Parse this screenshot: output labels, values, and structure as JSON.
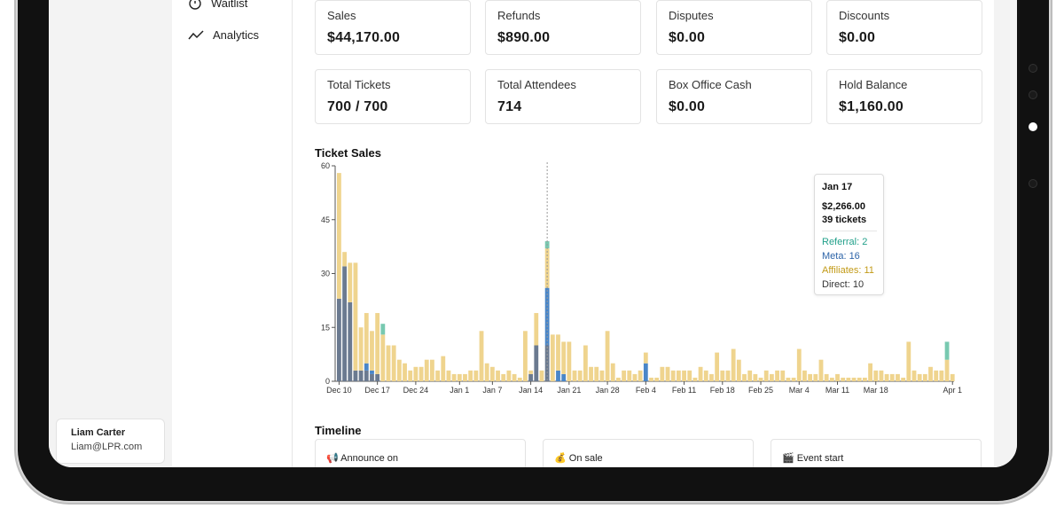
{
  "nav": {
    "items": [
      {
        "label": "Waitlist",
        "icon": "stopwatch-icon"
      },
      {
        "label": "Analytics",
        "icon": "trend-line-icon"
      }
    ]
  },
  "user": {
    "name": "Liam Carter",
    "email": "Liam@LPR.com"
  },
  "stats": [
    {
      "label": "Sales",
      "value": "$44,170.00"
    },
    {
      "label": "Refunds",
      "value": "$890.00"
    },
    {
      "label": "Disputes",
      "value": "$0.00"
    },
    {
      "label": "Discounts",
      "value": "$0.00"
    },
    {
      "label": "Total Tickets",
      "value": "700 / 700"
    },
    {
      "label": "Total Attendees",
      "value": "714"
    },
    {
      "label": "Box Office Cash",
      "value": "$0.00"
    },
    {
      "label": "Hold Balance",
      "value": "$1,160.00"
    }
  ],
  "ticket_sales": {
    "title": "Ticket Sales"
  },
  "tooltip": {
    "date": "Jan 17",
    "amount": "$2,266.00",
    "tickets": "39 tickets",
    "referral": "Referral: 2",
    "meta": "Meta: 16",
    "affiliates": "Affiliates: 11",
    "direct": "Direct: 10"
  },
  "timeline": {
    "title": "Timeline",
    "items": [
      {
        "label": "Announce on",
        "icon": "megaphone-icon"
      },
      {
        "label": "On sale",
        "icon": "money-bag-icon"
      },
      {
        "label": "Event start",
        "icon": "clapper-icon"
      }
    ]
  },
  "colors": {
    "direct": "#6b7a90",
    "meta": "#4a86c8",
    "affiliates": "#efd48e",
    "referral": "#78c9b0",
    "referral_text": "#22a08a",
    "meta_text": "#2d64a8",
    "affiliates_text": "#c29a17"
  },
  "chart_data": {
    "type": "bar",
    "stacked": true,
    "ylim": [
      0,
      60
    ],
    "yticks": [
      0,
      15,
      30,
      45,
      60
    ],
    "xticks": [
      "Dec 10",
      "Dec 17",
      "Dec 24",
      "Jan 1",
      "Jan 7",
      "Jan 14",
      "Jan 21",
      "Jan 28",
      "Feb 4",
      "Feb 11",
      "Feb 18",
      "Feb 25",
      "Mar 4",
      "Mar 11",
      "Mar 18",
      "Apr 1"
    ],
    "series_names": [
      "Direct",
      "Meta",
      "Affiliates",
      "Referral"
    ],
    "x": [
      "Dec 10",
      "Dec 11",
      "Dec 12",
      "Dec 13",
      "Dec 14",
      "Dec 15",
      "Dec 16",
      "Dec 17",
      "Dec 18",
      "Dec 19",
      "Dec 20",
      "Dec 21",
      "Dec 22",
      "Dec 23",
      "Dec 24",
      "Dec 25",
      "Dec 26",
      "Dec 27",
      "Dec 28",
      "Dec 29",
      "Dec 30",
      "Dec 31",
      "Jan 1",
      "Jan 2",
      "Jan 3",
      "Jan 4",
      "Jan 5",
      "Jan 6",
      "Jan 7",
      "Jan 8",
      "Jan 9",
      "Jan 10",
      "Jan 11",
      "Jan 12",
      "Jan 13",
      "Jan 14",
      "Jan 15",
      "Jan 16",
      "Jan 17",
      "Jan 18",
      "Jan 19",
      "Jan 20",
      "Jan 21",
      "Jan 22",
      "Jan 23",
      "Jan 24",
      "Jan 25",
      "Jan 26",
      "Jan 27",
      "Jan 28",
      "Jan 29",
      "Jan 30",
      "Jan 31",
      "Feb 1",
      "Feb 2",
      "Feb 3",
      "Feb 4",
      "Feb 5",
      "Feb 6",
      "Feb 7",
      "Feb 8",
      "Feb 9",
      "Feb 10",
      "Feb 11",
      "Feb 12",
      "Feb 13",
      "Feb 14",
      "Feb 15",
      "Feb 16",
      "Feb 17",
      "Feb 18",
      "Feb 19",
      "Feb 20",
      "Feb 21",
      "Feb 22",
      "Feb 23",
      "Feb 24",
      "Feb 25",
      "Feb 26",
      "Feb 27",
      "Feb 28",
      "Mar 1",
      "Mar 2",
      "Mar 3",
      "Mar 4",
      "Mar 5",
      "Mar 6",
      "Mar 7",
      "Mar 8",
      "Mar 9",
      "Mar 10",
      "Mar 11",
      "Mar 12",
      "Mar 13",
      "Mar 14",
      "Mar 15",
      "Mar 16",
      "Mar 17",
      "Mar 18",
      "Mar 19",
      "Mar 20",
      "Mar 21",
      "Mar 22",
      "Mar 23",
      "Mar 24",
      "Mar 25",
      "Mar 26",
      "Mar 27",
      "Mar 28",
      "Mar 29",
      "Mar 30",
      "Mar 31",
      "Apr 1"
    ],
    "series": [
      {
        "name": "Direct",
        "values": [
          23,
          32,
          22,
          3,
          3,
          3,
          2,
          2,
          0,
          0,
          0,
          0,
          0,
          0,
          0,
          0,
          0,
          0,
          0,
          0,
          0,
          0,
          0,
          0,
          0,
          0,
          0,
          0,
          0,
          0,
          0,
          0,
          0,
          0,
          0,
          2,
          10,
          0,
          10,
          0,
          0,
          0,
          0,
          0,
          0,
          0,
          0,
          0,
          0,
          0,
          0,
          0,
          0,
          0,
          0,
          0,
          0,
          0,
          0,
          0,
          0,
          0,
          0,
          0,
          0,
          0,
          0,
          0,
          0,
          0,
          0,
          0,
          0,
          0,
          0,
          0,
          0,
          0,
          0,
          0,
          0,
          0,
          0,
          0,
          0,
          0,
          0,
          0,
          0,
          0,
          0,
          0,
          0,
          0,
          0,
          0,
          0,
          0,
          0,
          0,
          0,
          0,
          0,
          0,
          0,
          0,
          0,
          0,
          0,
          0,
          0,
          0,
          0
        ]
      },
      {
        "name": "Meta",
        "values": [
          0,
          0,
          0,
          0,
          0,
          2,
          1,
          0,
          0,
          0,
          0,
          0,
          0,
          0,
          0,
          0,
          0,
          0,
          0,
          0,
          0,
          0,
          0,
          0,
          0,
          0,
          0,
          0,
          0,
          0,
          0,
          0,
          0,
          0,
          0,
          0,
          0,
          0,
          16,
          0,
          3,
          2,
          0,
          0,
          0,
          0,
          0,
          0,
          0,
          0,
          0,
          0,
          0,
          0,
          0,
          0,
          5,
          0,
          0,
          0,
          0,
          0,
          0,
          0,
          0,
          0,
          0,
          0,
          0,
          0,
          0,
          0,
          0,
          0,
          0,
          0,
          0,
          0,
          0,
          0,
          0,
          0,
          0,
          0,
          0,
          0,
          0,
          0,
          0,
          0,
          0,
          0,
          0,
          0,
          0,
          0,
          0,
          0,
          0,
          0,
          0,
          0,
          0,
          0,
          0,
          0,
          0,
          0,
          0,
          0,
          0,
          0,
          0
        ]
      },
      {
        "name": "Affiliates",
        "values": [
          35,
          4,
          11,
          30,
          12,
          14,
          11,
          17,
          13,
          10,
          10,
          6,
          5,
          3,
          4,
          4,
          6,
          6,
          3,
          7,
          3,
          2,
          2,
          2,
          3,
          3,
          14,
          5,
          4,
          3,
          2,
          3,
          2,
          1,
          14,
          1,
          9,
          3,
          11,
          13,
          10,
          9,
          11,
          3,
          3,
          10,
          4,
          4,
          3,
          14,
          5,
          1,
          3,
          3,
          2,
          3,
          3,
          1,
          1,
          4,
          4,
          3,
          3,
          3,
          3,
          1,
          4,
          3,
          2,
          8,
          3,
          3,
          9,
          6,
          2,
          3,
          2,
          1,
          3,
          2,
          3,
          3,
          1,
          1,
          9,
          3,
          2,
          2,
          6,
          2,
          1,
          2,
          1,
          1,
          1,
          1,
          1,
          5,
          3,
          3,
          2,
          2,
          2,
          1,
          11,
          3,
          2,
          2,
          4,
          3,
          3,
          6,
          2
        ]
      },
      {
        "name": "Referral",
        "values": [
          0,
          0,
          0,
          0,
          0,
          0,
          0,
          0,
          3,
          0,
          0,
          0,
          0,
          0,
          0,
          0,
          0,
          0,
          0,
          0,
          0,
          0,
          0,
          0,
          0,
          0,
          0,
          0,
          0,
          0,
          0,
          0,
          0,
          0,
          0,
          0,
          0,
          0,
          2,
          0,
          0,
          0,
          0,
          0,
          0,
          0,
          0,
          0,
          0,
          0,
          0,
          0,
          0,
          0,
          0,
          0,
          0,
          0,
          0,
          0,
          0,
          0,
          0,
          0,
          0,
          0,
          0,
          0,
          0,
          0,
          0,
          0,
          0,
          0,
          0,
          0,
          0,
          0,
          0,
          0,
          0,
          0,
          0,
          0,
          0,
          0,
          0,
          0,
          0,
          0,
          0,
          0,
          0,
          0,
          0,
          0,
          0,
          0,
          0,
          0,
          0,
          0,
          0,
          0,
          0,
          0,
          0,
          0,
          0,
          0,
          0,
          5,
          0
        ]
      }
    ]
  }
}
